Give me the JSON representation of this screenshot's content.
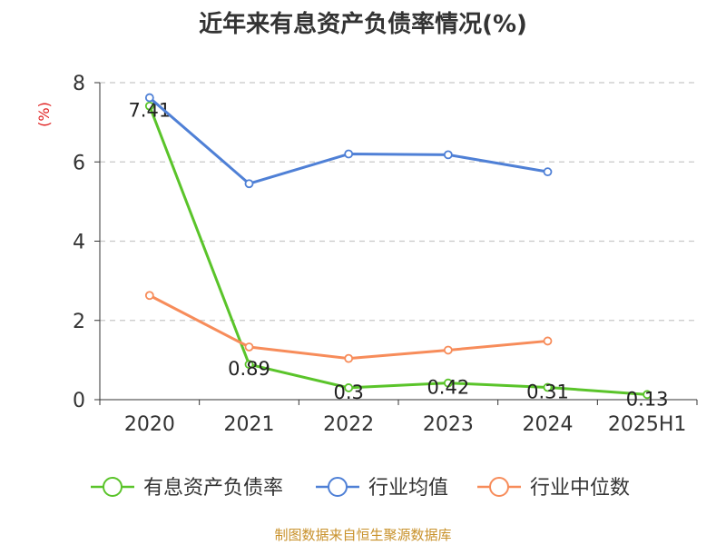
{
  "chart_data": {
    "type": "line",
    "title": "近年来有息资产负债率情况(%)",
    "ylabel": "(%)",
    "xlabel": "",
    "categories": [
      "2020",
      "2021",
      "2022",
      "2023",
      "2024",
      "2025H1"
    ],
    "ylim": [
      0,
      8
    ],
    "yticks": [
      0,
      2,
      4,
      6,
      8
    ],
    "grid": true,
    "legend_position": "bottom",
    "series": [
      {
        "name": "有息资产负债率",
        "color": "#5ac42a",
        "values": [
          7.41,
          0.89,
          0.3,
          0.42,
          0.31,
          0.13
        ],
        "labels": [
          "7.41",
          "0.89",
          "0.3",
          "0.42",
          "0.31",
          "0.13"
        ]
      },
      {
        "name": "行业均值",
        "color": "#4f80d6",
        "values": [
          7.62,
          5.45,
          6.2,
          6.18,
          5.75,
          null
        ]
      },
      {
        "name": "行业中位数",
        "color": "#f78c5a",
        "values": [
          2.63,
          1.33,
          1.04,
          1.25,
          1.48,
          null
        ]
      }
    ]
  },
  "source": "制图数据来自恒生聚源数据库",
  "colors": {
    "axis": "#333333",
    "grid": "#c8c8c8",
    "ylabel": "#e02020",
    "source": "#c8912a"
  }
}
